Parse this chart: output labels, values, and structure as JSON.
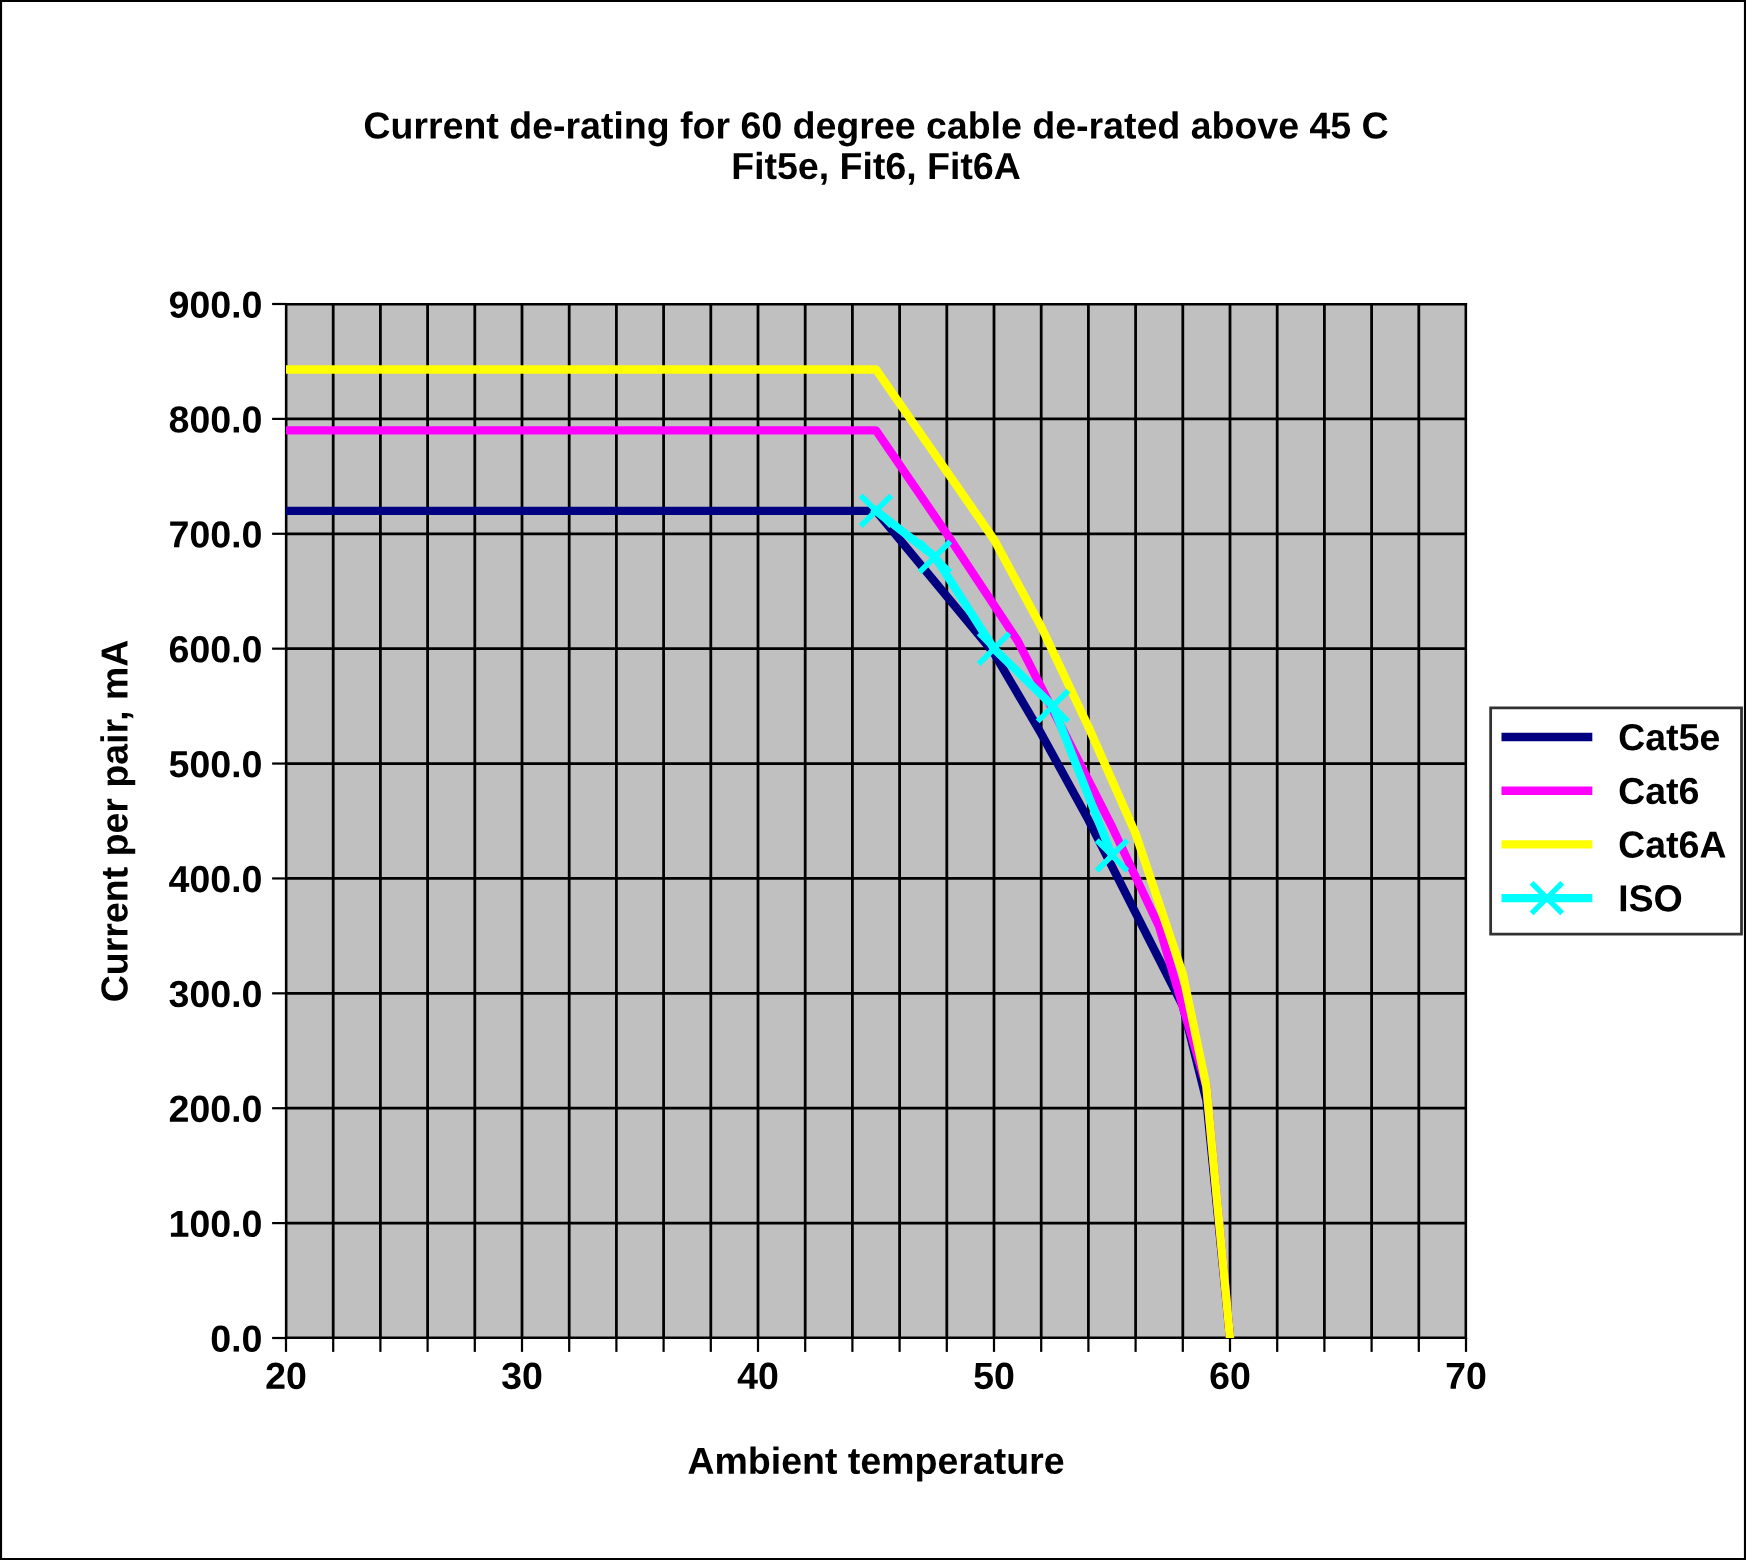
{
  "chart_data": {
    "type": "line",
    "title": "Current de-rating for 60 degree cable de-rated above 45 C\nFit5e, Fit6, Fit6A",
    "xlabel": "Ambient temperature",
    "ylabel": "Current per pair, mA",
    "series": [
      {
        "name": "Cat5e",
        "color": "#000080",
        "x": [
          20,
          45,
          50,
          52,
          54,
          56,
          58,
          59,
          60
        ],
        "values": [
          720,
          720,
          596,
          526,
          451,
          370,
          289,
          207,
          0
        ],
        "marker": "none"
      },
      {
        "name": "Cat6",
        "color": "#ff00ff",
        "x": [
          20,
          45,
          48,
          51,
          53,
          55,
          57,
          59,
          60
        ],
        "values": [
          790,
          790,
          700,
          607,
          526,
          445,
          358,
          219,
          0
        ],
        "marker": "none"
      },
      {
        "name": "Cat6A",
        "color": "#ffff00",
        "x": [
          20,
          45,
          50,
          52,
          54,
          56,
          58,
          59,
          60
        ],
        "values": [
          843,
          843,
          695,
          619,
          532,
          439,
          317,
          219,
          0
        ],
        "marker": "none"
      },
      {
        "name": "ISO",
        "color": "#00ffff",
        "x": [
          45,
          47.5,
          50,
          52.5,
          55
        ],
        "values": [
          720,
          680,
          600,
          550,
          420
        ],
        "marker": "cross"
      }
    ],
    "xlim": [
      20,
      70
    ],
    "ylim": [
      0,
      900
    ],
    "xticks": [
      20,
      {
        "value": 22,
        "label": null
      },
      {
        "value": 24,
        "label": null
      },
      {
        "value": 26,
        "label": null
      },
      {
        "value": 28,
        "label": null
      },
      30,
      {
        "value": 32,
        "label": null
      },
      {
        "value": 34,
        "label": null
      },
      {
        "value": 36,
        "label": null
      },
      {
        "value": 38,
        "label": null
      },
      40,
      {
        "value": 42,
        "label": null
      },
      {
        "value": 44,
        "label": null
      },
      {
        "value": 46,
        "label": null
      },
      {
        "value": 48,
        "label": null
      },
      50,
      {
        "value": 52,
        "label": null
      },
      {
        "value": 54,
        "label": null
      },
      {
        "value": 56,
        "label": null
      },
      {
        "value": 58,
        "label": null
      },
      60,
      {
        "value": 62,
        "label": null
      },
      {
        "value": 64,
        "label": null
      },
      {
        "value": 66,
        "label": null
      },
      {
        "value": 68,
        "label": null
      },
      70
    ],
    "yticks": [
      {
        "value": 0,
        "label": "0.0"
      },
      {
        "value": 100,
        "label": "100.0"
      },
      {
        "value": 200,
        "label": "200.0"
      },
      {
        "value": 300,
        "label": "300.0"
      },
      {
        "value": 400,
        "label": "400.0"
      },
      {
        "value": 500,
        "label": "500.0"
      },
      {
        "value": 600,
        "label": "600.0"
      },
      {
        "value": 700,
        "label": "700.0"
      },
      {
        "value": 800,
        "label": "800.0"
      },
      {
        "value": 900,
        "label": "900.0"
      }
    ],
    "grid": true,
    "legend": "right",
    "line_style": "solid"
  }
}
